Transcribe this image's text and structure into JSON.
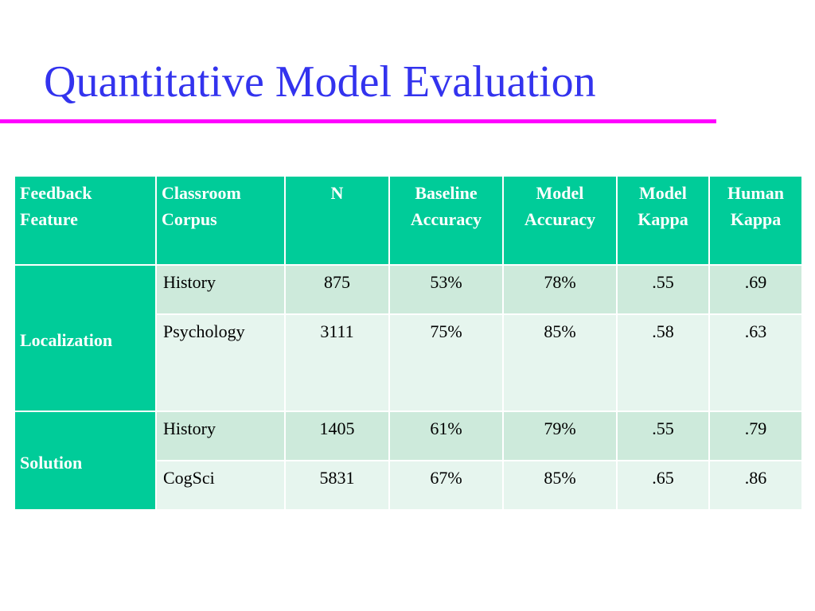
{
  "slide": {
    "title": "Quantitative Model Evaluation"
  },
  "colors": {
    "title": "#3333ee",
    "title_rule": "#ff00ff",
    "header_bg": "#00cc99",
    "row_dark": "#cdeadb",
    "row_light": "#e6f5ee"
  },
  "table": {
    "headers": [
      [
        "Feedback",
        "Feature"
      ],
      [
        "Classroom",
        "Corpus"
      ],
      [
        "N"
      ],
      [
        "Baseline",
        "Accuracy"
      ],
      [
        "Model",
        "Accuracy"
      ],
      [
        "Model",
        "Kappa"
      ],
      [
        "Human",
        "Kappa"
      ]
    ],
    "groups": [
      {
        "feature": "Localization",
        "rows": [
          {
            "corpus": "History",
            "n": "875",
            "baseline": "53%",
            "model_acc": "78%",
            "model_kappa": ".55",
            "human_kappa": ".69"
          },
          {
            "corpus": "Psychology",
            "n": "3111",
            "baseline": "75%",
            "model_acc": "85%",
            "model_kappa": ".58",
            "human_kappa": ".63"
          }
        ]
      },
      {
        "feature": "Solution",
        "rows": [
          {
            "corpus": "History",
            "n": "1405",
            "baseline": "61%",
            "model_acc": "79%",
            "model_kappa": ".55",
            "human_kappa": ".79"
          },
          {
            "corpus": "CogSci",
            "n": "5831",
            "baseline": "67%",
            "model_acc": "85%",
            "model_kappa": ".65",
            "human_kappa": ".86"
          }
        ]
      }
    ]
  }
}
